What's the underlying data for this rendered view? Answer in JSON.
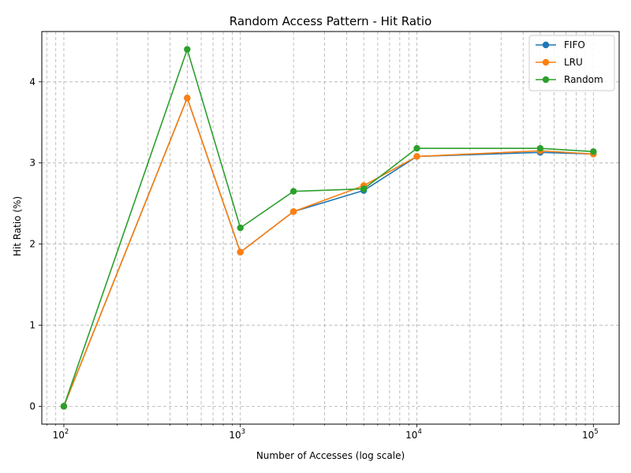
{
  "chart_data": {
    "type": "line",
    "title": "Random Access Pattern - Hit Ratio",
    "xlabel": "Number of Accesses (log scale)",
    "ylabel": "Hit Ratio (%)",
    "xscale": "log",
    "xlim": [
      75,
      140000
    ],
    "ylim": [
      -0.22,
      4.62
    ],
    "grid": true,
    "legend_position": "top-right",
    "x": [
      100,
      500,
      1000,
      2000,
      5000,
      10000,
      50000,
      100000
    ],
    "x_ticks": [
      {
        "value": 100,
        "base": "10",
        "exp": "2"
      },
      {
        "value": 1000,
        "base": "10",
        "exp": "3"
      },
      {
        "value": 10000,
        "base": "10",
        "exp": "4"
      },
      {
        "value": 100000,
        "base": "10",
        "exp": "5"
      }
    ],
    "y_ticks": [
      {
        "value": 0,
        "label": "0"
      },
      {
        "value": 1,
        "label": "1"
      },
      {
        "value": 2,
        "label": "2"
      },
      {
        "value": 3,
        "label": "3"
      },
      {
        "value": 4,
        "label": "4"
      }
    ],
    "series": [
      {
        "name": "FIFO",
        "color": "#1f77b4",
        "values": [
          0.0,
          3.8,
          1.9,
          2.4,
          2.66,
          3.08,
          3.13,
          3.11
        ]
      },
      {
        "name": "LRU",
        "color": "#ff7f0e",
        "values": [
          0.0,
          3.8,
          1.9,
          2.4,
          2.72,
          3.08,
          3.15,
          3.11
        ]
      },
      {
        "name": "Random",
        "color": "#2ca02c",
        "values": [
          0.0,
          4.4,
          2.2,
          2.65,
          2.68,
          3.18,
          3.18,
          3.14
        ]
      }
    ]
  }
}
